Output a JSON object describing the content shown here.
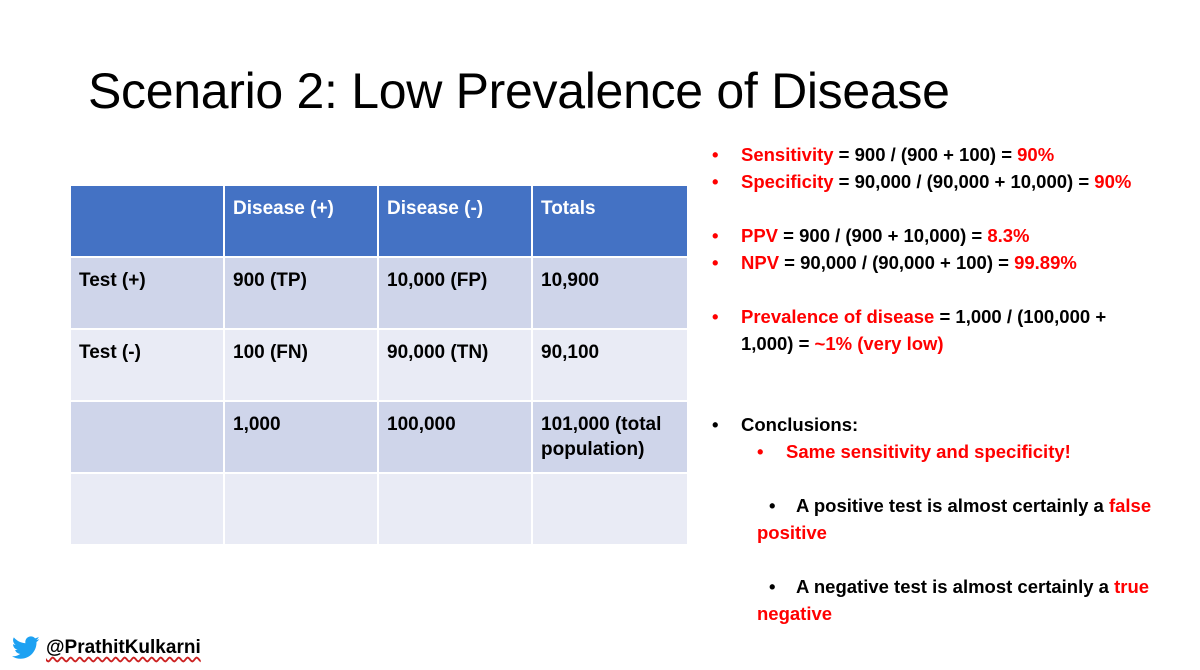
{
  "slide": {
    "title": "Scenario 2: Low Prevalence of Disease"
  },
  "table": {
    "header": [
      "",
      "Disease (+)",
      "Disease (-)",
      "Totals"
    ],
    "rows": [
      [
        "Test (+)",
        "900 (TP)",
        "10,000 (FP)",
        "10,900"
      ],
      [
        "Test (-)",
        "100 (FN)",
        "90,000 (TN)",
        "90,100"
      ],
      [
        "",
        "1,000",
        "100,000",
        "101,000 (total population)"
      ],
      [
        "",
        "",
        "",
        ""
      ]
    ]
  },
  "metrics": {
    "bullet": "•",
    "sensitivity": {
      "label": "Sensitivity",
      "formula": " = 900 / (900 + 100) = ",
      "result": "90%"
    },
    "specificity": {
      "label": "Specificity",
      "formula": " = 90,000 / (90,000 + 10,000) = ",
      "result": "90%"
    },
    "ppv": {
      "label": "PPV",
      "formula": " = 900 / (900 + 10,000) = ",
      "result": "8.3%"
    },
    "npv": {
      "label": "NPV",
      "formula": " = 90,000 / (90,000 + 100) = ",
      "result": "99.89%"
    },
    "prevalence": {
      "label": "Prevalence of disease",
      "formula": " = 1,000 / (100,000 + 1,000) = ",
      "result": "~1% (very low)"
    }
  },
  "conclusions": {
    "heading": "Conclusions:",
    "point1": "Same sensitivity and specificity!",
    "point2_text": "A positive test is almost certainly a ",
    "point2_emph": "false positive",
    "point3_text": "A negative test is almost certainly a ",
    "point3_emph": "true negative"
  },
  "footer": {
    "icon": "twitter-bird-icon",
    "handle": "@PrathitKulkarni"
  },
  "colors": {
    "header_blue": "#4472c4",
    "row_dark": "#cfd5ea",
    "row_light": "#e9ebf5",
    "emphasis_red": "#ff0000",
    "twitter_blue": "#1da1f2"
  }
}
